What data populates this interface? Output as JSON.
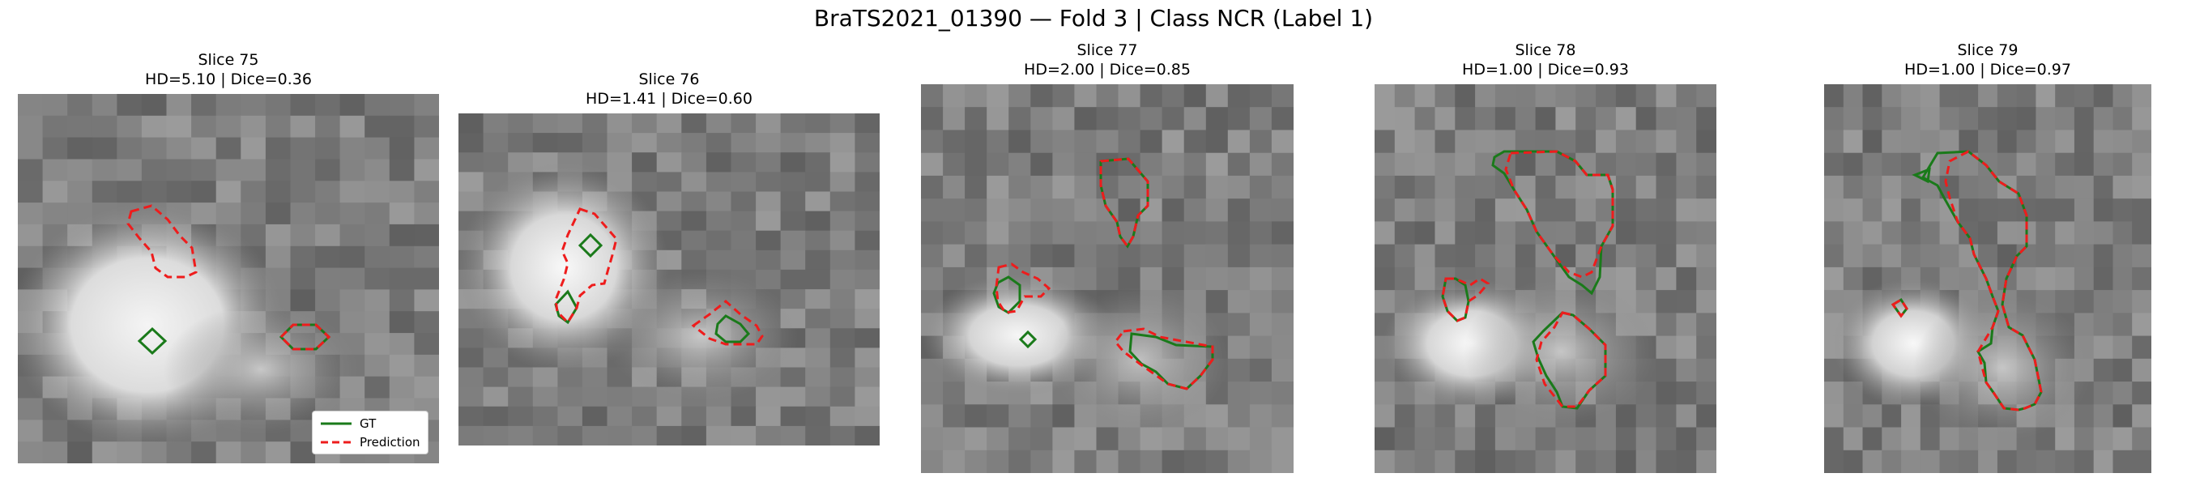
{
  "figure": {
    "title": "BraTS2021_01390 — Fold 3 | Class NCR (Label 1)"
  },
  "colors": {
    "gt": "#1a7a1a",
    "prediction": "#ee1c1c"
  },
  "panels": [
    {
      "slice_label": "Slice 75",
      "metrics_label": "HD=5.10 | Dice=0.36",
      "hd": 5.1,
      "dice": 0.36
    },
    {
      "slice_label": "Slice 76",
      "metrics_label": "HD=1.41 | Dice=0.60",
      "hd": 1.41,
      "dice": 0.6
    },
    {
      "slice_label": "Slice 77",
      "metrics_label": "HD=2.00 | Dice=0.85",
      "hd": 2.0,
      "dice": 0.85
    },
    {
      "slice_label": "Slice 78",
      "metrics_label": "HD=1.00 | Dice=0.93",
      "hd": 1.0,
      "dice": 0.93
    },
    {
      "slice_label": "Slice 79",
      "metrics_label": "HD=1.00 | Dice=0.97",
      "hd": 1.0,
      "dice": 0.97
    }
  ],
  "legend": {
    "gt_label": "GT",
    "prediction_label": "Prediction",
    "placement": "lower-right of first panel"
  }
}
